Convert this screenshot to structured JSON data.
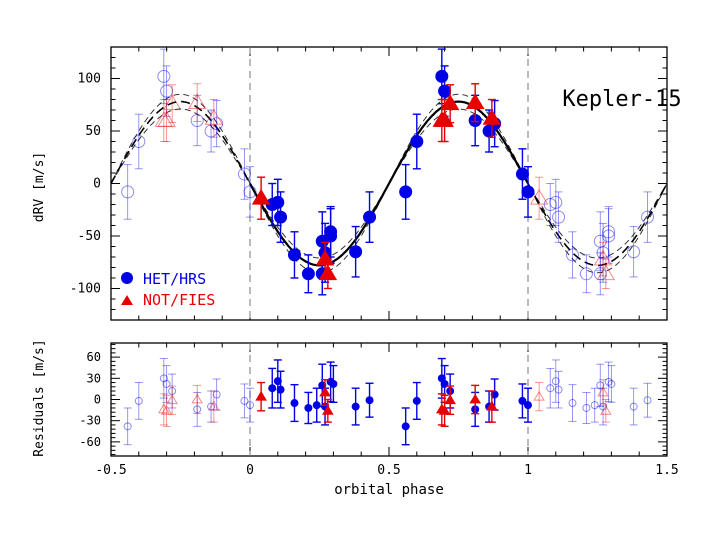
{
  "chart_data": [
    {
      "type": "scatter",
      "name": "rv",
      "ylabel": "dRV [m/s]",
      "xlim": [
        -0.5,
        1.5
      ],
      "ylim": [
        -130,
        130
      ],
      "yticks": [
        -100,
        -50,
        0,
        50,
        100
      ],
      "xticks": [
        -0.5,
        0,
        0.5,
        1,
        1.5
      ],
      "annotation": "Kepler-15",
      "vlines": [
        0,
        1
      ],
      "legend": {
        "position": "bottom-left",
        "entries": [
          "HET/HRS",
          "NOT/FIES"
        ]
      },
      "model": {
        "semi_amplitude": 78,
        "phase_of_max": 0.75,
        "spread": 7
      },
      "series": [
        {
          "name": "HET/HRS",
          "color": "#0000e6",
          "points": [
            {
              "x": 0.08,
              "y": -20,
              "e": 20
            },
            {
              "x": 0.1,
              "y": -18,
              "e": 22
            },
            {
              "x": 0.11,
              "y": -32,
              "e": 24
            },
            {
              "x": 0.16,
              "y": -68,
              "e": 22
            },
            {
              "x": 0.21,
              "y": -86,
              "e": 18
            },
            {
              "x": 0.26,
              "y": -86,
              "e": 20
            },
            {
              "x": 0.26,
              "y": -55,
              "e": 28
            },
            {
              "x": 0.27,
              "y": -66,
              "e": 28
            },
            {
              "x": 0.29,
              "y": -50,
              "e": 26
            },
            {
              "x": 0.29,
              "y": -46,
              "e": 24
            },
            {
              "x": 0.43,
              "y": -32,
              "e": 24
            },
            {
              "x": 0.38,
              "y": -65,
              "e": 24
            },
            {
              "x": 0.56,
              "y": -8,
              "e": 26
            },
            {
              "x": 0.6,
              "y": 40,
              "e": 26
            },
            {
              "x": 0.69,
              "y": 102,
              "e": 26
            },
            {
              "x": 0.7,
              "y": 88,
              "e": 24
            },
            {
              "x": 0.81,
              "y": 60,
              "e": 24
            },
            {
              "x": 0.86,
              "y": 50,
              "e": 20
            },
            {
              "x": 0.88,
              "y": 57,
              "e": 22
            },
            {
              "x": 0.98,
              "y": 9,
              "e": 24
            },
            {
              "x": 1.0,
              "y": -8,
              "e": 24
            }
          ]
        },
        {
          "name": "NOT/FIES",
          "color": "#e60000",
          "points": [
            {
              "x": 0.04,
              "y": -14,
              "e": 20
            },
            {
              "x": 0.27,
              "y": -72,
              "e": 16
            },
            {
              "x": 0.28,
              "y": -86,
              "e": 14
            },
            {
              "x": 0.69,
              "y": 60,
              "e": 20
            },
            {
              "x": 0.7,
              "y": 60,
              "e": 20
            },
            {
              "x": 0.72,
              "y": 76,
              "e": 18
            },
            {
              "x": 0.81,
              "y": 77,
              "e": 18
            },
            {
              "x": 0.87,
              "y": 62,
              "e": 18
            }
          ]
        }
      ]
    },
    {
      "type": "scatter",
      "name": "residuals",
      "xlabel": "orbital phase",
      "ylabel": "Residuals [m/s]",
      "xlim": [
        -0.5,
        1.5
      ],
      "ylim": [
        -80,
        80
      ],
      "yticks": [
        -60,
        -30,
        0,
        30,
        60
      ],
      "xticks": [
        -0.5,
        0,
        0.5,
        1,
        1.5
      ],
      "vlines": [
        0,
        1
      ],
      "series": [
        {
          "name": "HET/HRS",
          "color": "#0000e6",
          "points": [
            {
              "x": 0.08,
              "y": 16,
              "e": 28
            },
            {
              "x": 0.1,
              "y": 26,
              "e": 30
            },
            {
              "x": 0.11,
              "y": 14,
              "e": 26
            },
            {
              "x": 0.16,
              "y": -5,
              "e": 26
            },
            {
              "x": 0.21,
              "y": -12,
              "e": 22
            },
            {
              "x": 0.24,
              "y": -8,
              "e": 24
            },
            {
              "x": 0.26,
              "y": 20,
              "e": 30
            },
            {
              "x": 0.27,
              "y": -10,
              "e": 26
            },
            {
              "x": 0.29,
              "y": 25,
              "e": 28
            },
            {
              "x": 0.3,
              "y": 22,
              "e": 26
            },
            {
              "x": 0.38,
              "y": -10,
              "e": 26
            },
            {
              "x": 0.43,
              "y": -1,
              "e": 24
            },
            {
              "x": 0.56,
              "y": -38,
              "e": 26
            },
            {
              "x": 0.6,
              "y": -2,
              "e": 26
            },
            {
              "x": 0.69,
              "y": 30,
              "e": 28
            },
            {
              "x": 0.7,
              "y": 22,
              "e": 26
            },
            {
              "x": 0.72,
              "y": 12,
              "e": 24
            },
            {
              "x": 0.81,
              "y": -14,
              "e": 24
            },
            {
              "x": 0.86,
              "y": -10,
              "e": 22
            },
            {
              "x": 0.88,
              "y": 7,
              "e": 22
            },
            {
              "x": 0.98,
              "y": -2,
              "e": 24
            },
            {
              "x": 1.0,
              "y": -8,
              "e": 24
            }
          ]
        },
        {
          "name": "NOT/FIES",
          "color": "#e60000",
          "points": [
            {
              "x": 0.04,
              "y": 4,
              "e": 20
            },
            {
              "x": 0.27,
              "y": 10,
              "e": 18
            },
            {
              "x": 0.28,
              "y": -16,
              "e": 16
            },
            {
              "x": 0.69,
              "y": -14,
              "e": 22
            },
            {
              "x": 0.7,
              "y": -16,
              "e": 22
            },
            {
              "x": 0.72,
              "y": -1,
              "e": 20
            },
            {
              "x": 0.81,
              "y": 0,
              "e": 20
            },
            {
              "x": 0.87,
              "y": -10,
              "e": 22
            }
          ]
        }
      ]
    }
  ]
}
